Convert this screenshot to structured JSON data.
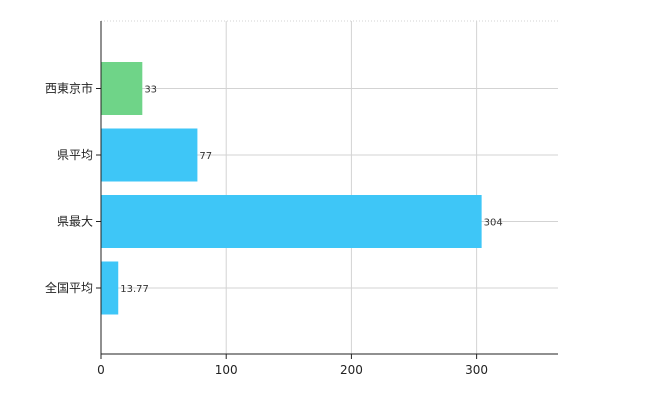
{
  "chart_data": {
    "type": "bar",
    "orientation": "horizontal",
    "categories": [
      "西東京市",
      "県平均",
      "県最大",
      "全国平均"
    ],
    "values": [
      33,
      77,
      304,
      13.77
    ],
    "data_labels": [
      "33",
      "77",
      "304",
      "13.77"
    ],
    "bar_colors": [
      "#6fd488",
      "#3ec6f7",
      "#3ec6f7",
      "#3ec6f7"
    ],
    "xlim": [
      0,
      365
    ],
    "x_ticks": [
      0,
      100,
      200,
      300
    ],
    "x_tick_labels": [
      "0",
      "100",
      "200",
      "300"
    ],
    "grid": true,
    "grid_color": "#d3d3d3",
    "legend": false
  }
}
